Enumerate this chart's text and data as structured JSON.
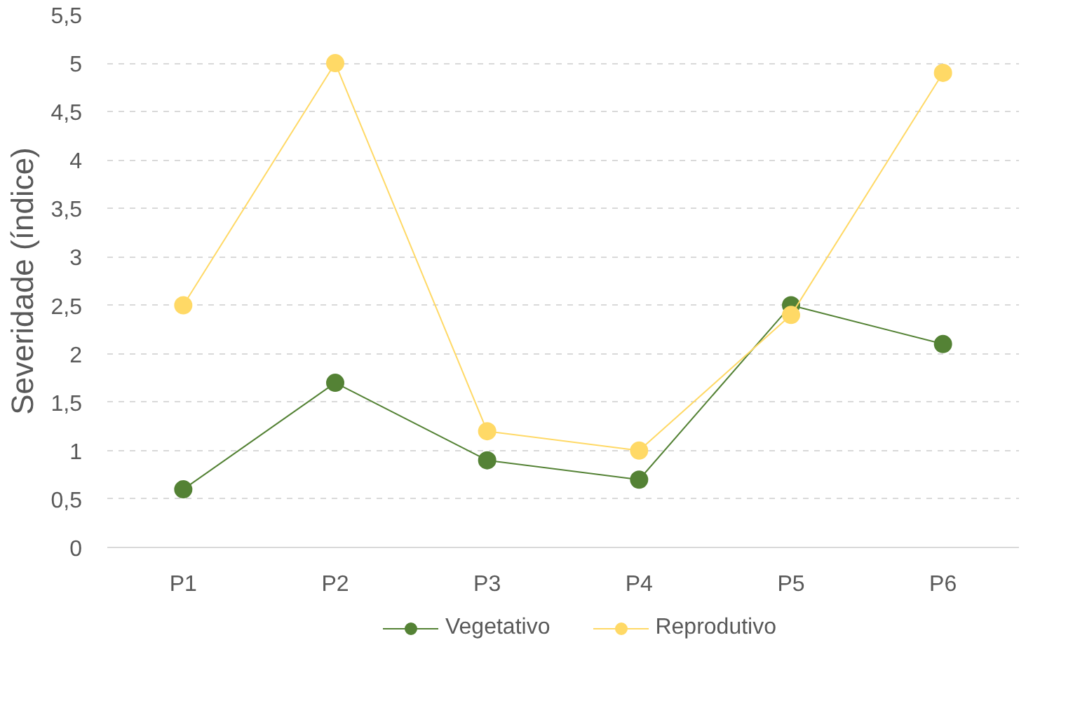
{
  "chart_data": {
    "type": "line",
    "ylabel": "Severidade (índice)",
    "categories": [
      "P1",
      "P2",
      "P3",
      "P4",
      "P5",
      "P6"
    ],
    "series": [
      {
        "name": "Vegetativo",
        "color": "#548235",
        "values": [
          0.6,
          1.7,
          0.9,
          0.7,
          2.5,
          2.1
        ]
      },
      {
        "name": "Reprodutivo",
        "color": "#ffd966",
        "values": [
          2.5,
          5,
          1.2,
          1.0,
          2.4,
          4.9
        ]
      }
    ],
    "ylim": [
      0,
      5.5
    ],
    "yticks": [
      0,
      {
        "value": 0.5,
        "label": "0,5"
      },
      1,
      {
        "value": 1.5,
        "label": "1,5"
      },
      2,
      {
        "value": 2.5,
        "label": "2,5"
      },
      3,
      {
        "value": 3.5,
        "label": "3,5"
      },
      4,
      {
        "value": 4.5,
        "label": "4,5"
      },
      5,
      {
        "value": 5.5,
        "label": "5,5"
      }
    ],
    "grid": "y",
    "legend": "bottom",
    "marker": "circle",
    "line_style": "solid"
  }
}
